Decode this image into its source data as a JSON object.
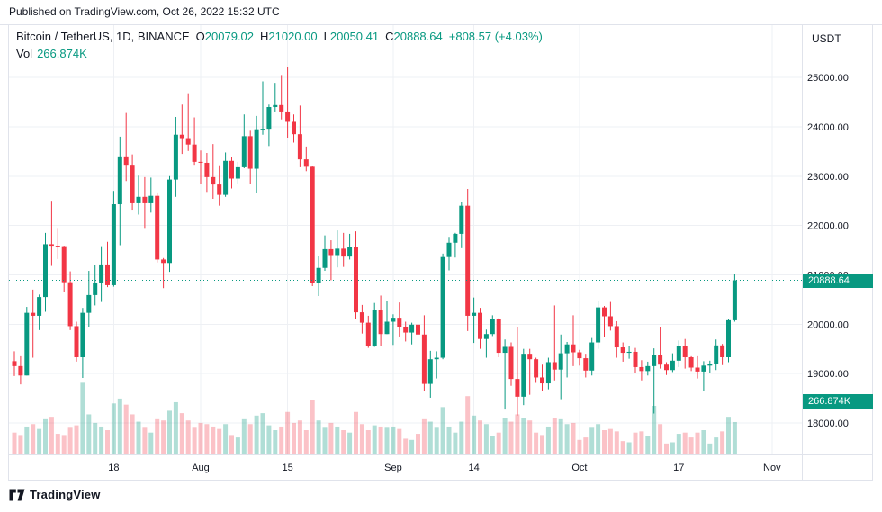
{
  "published_bar": {
    "text": "Published on TradingView.com, Oct 26, 2022 15:32 UTC"
  },
  "footer": {
    "brand": "TradingView"
  },
  "colors": {
    "up": "#089981",
    "down": "#F23645",
    "up_volume": "rgba(8,153,129,0.32)",
    "down_volume": "rgba(242,54,69,0.30)",
    "grid": "#eef0f4",
    "separator": "#e0e3eb",
    "axis_text": "#131722",
    "badge_bg": "#089981",
    "badge_text": "#ffffff"
  },
  "legend": {
    "symbol": "Bitcoin / TetherUS, 1D, BINANCE",
    "ohlc": [
      {
        "label": "O",
        "value": "20079.02"
      },
      {
        "label": "H",
        "value": "21020.00"
      },
      {
        "label": "L",
        "value": "20050.41"
      },
      {
        "label": "C",
        "value": "20888.64"
      }
    ],
    "change": "+808.57 (+4.03%)",
    "vol_label": "Vol",
    "vol_value": "266.874K"
  },
  "axes": {
    "currency": "USDT",
    "price_ticks": [
      "25000.00",
      "24000.00",
      "23000.00",
      "22000.00",
      "21000.00",
      "20000.00",
      "19000.00",
      "18000.00"
    ],
    "price_tick_values": [
      25000,
      24000,
      23000,
      22000,
      21000,
      20000,
      19000,
      18000
    ],
    "time_ticks": [
      {
        "label": "18",
        "i": 16
      },
      {
        "label": "Aug",
        "i": 30
      },
      {
        "label": "15",
        "i": 44
      },
      {
        "label": "Sep",
        "i": 61
      },
      {
        "label": "14",
        "i": 74
      },
      {
        "label": "Oct",
        "i": 91
      },
      {
        "label": "17",
        "i": 107
      },
      {
        "label": "Nov",
        "i": 122
      }
    ]
  },
  "badges": {
    "price": "20888.64",
    "volume": "266.874K"
  },
  "chart_data": {
    "type": "candlestick",
    "title": "Bitcoin / TetherUS, 1D, BINANCE",
    "currency": "USDT",
    "last_close": 20888.64,
    "change": "+808.57 (+4.03%)",
    "last_volume": "266.874K",
    "price_range": [
      17360,
      26060
    ],
    "columns": [
      "date",
      "open",
      "high",
      "low",
      "close",
      "volume_k"
    ],
    "candles": [
      [
        "Jul 2",
        19250,
        19450,
        18950,
        19150,
        180
      ],
      [
        "Jul 3",
        19150,
        19350,
        18780,
        18960,
        160
      ],
      [
        "Jul 4",
        18960,
        20350,
        18960,
        20230,
        230
      ],
      [
        "Jul 5",
        20230,
        20700,
        19320,
        20170,
        250
      ],
      [
        "Jul 6",
        20170,
        20600,
        19880,
        20550,
        210
      ],
      [
        "Jul 7",
        20550,
        21850,
        20250,
        21620,
        290
      ],
      [
        "Jul 8",
        21620,
        22500,
        21180,
        21590,
        310
      ],
      [
        "Jul 9",
        21590,
        21950,
        21320,
        21580,
        170
      ],
      [
        "Jul 10",
        21580,
        21590,
        20650,
        20850,
        160
      ],
      [
        "Jul 11",
        20850,
        21070,
        19880,
        19960,
        220
      ],
      [
        "Jul 12",
        19960,
        20050,
        19240,
        19330,
        240
      ],
      [
        "Jul 13",
        19330,
        20330,
        18910,
        20230,
        590
      ],
      [
        "Jul 14",
        20230,
        21080,
        19950,
        20590,
        330
      ],
      [
        "Jul 15",
        20590,
        21200,
        20380,
        20830,
        260
      ],
      [
        "Jul 16",
        20830,
        21580,
        20450,
        21210,
        230
      ],
      [
        "Jul 17",
        21210,
        21670,
        20750,
        20790,
        200
      ],
      [
        "Jul 18",
        20790,
        22700,
        20760,
        22430,
        420
      ],
      [
        "Jul 19",
        22430,
        23800,
        21600,
        23400,
        460
      ],
      [
        "Jul 20",
        23400,
        24280,
        22900,
        23230,
        410
      ],
      [
        "Jul 21",
        23230,
        23440,
        22320,
        22450,
        330
      ],
      [
        "Jul 22",
        22450,
        23010,
        22220,
        22580,
        270
      ],
      [
        "Jul 23",
        22580,
        22980,
        21950,
        22450,
        220
      ],
      [
        "Jul 24",
        22450,
        22970,
        22260,
        22600,
        180
      ],
      [
        "Jul 25",
        22600,
        22670,
        21250,
        21310,
        290
      ],
      [
        "Jul 26",
        21310,
        21340,
        20730,
        21240,
        280
      ],
      [
        "Jul 27",
        21240,
        23000,
        21060,
        22930,
        360
      ],
      [
        "Jul 28",
        22930,
        24200,
        22580,
        23840,
        430
      ],
      [
        "Jul 29",
        23840,
        24450,
        23450,
        23770,
        340
      ],
      [
        "Jul 30",
        23770,
        24680,
        23510,
        23640,
        280
      ],
      [
        "Jul 31",
        23640,
        24190,
        23230,
        23290,
        220
      ],
      [
        "Aug 1",
        23290,
        23520,
        22840,
        23270,
        260
      ],
      [
        "Aug 2",
        23270,
        23470,
        22680,
        22980,
        250
      ],
      [
        "Aug 3",
        22980,
        23650,
        22540,
        22830,
        230
      ],
      [
        "Aug 4",
        22830,
        23220,
        22400,
        22620,
        210
      ],
      [
        "Aug 5",
        22620,
        23480,
        22580,
        23310,
        250
      ],
      [
        "Aug 6",
        23310,
        23390,
        22750,
        22950,
        160
      ],
      [
        "Aug 7",
        22950,
        23290,
        22850,
        23180,
        140
      ],
      [
        "Aug 8",
        23180,
        24250,
        23160,
        23810,
        290
      ],
      [
        "Aug 9",
        23810,
        23920,
        22850,
        23150,
        250
      ],
      [
        "Aug 10",
        23150,
        24220,
        22660,
        23950,
        320
      ],
      [
        "Aug 11",
        23950,
        24920,
        23840,
        23960,
        340
      ],
      [
        "Aug 12",
        23960,
        24450,
        23610,
        24400,
        240
      ],
      [
        "Aug 13",
        24400,
        24890,
        24310,
        24440,
        200
      ],
      [
        "Aug 14",
        24440,
        25050,
        24150,
        24310,
        230
      ],
      [
        "Aug 15",
        24310,
        25210,
        23780,
        24100,
        350
      ],
      [
        "Aug 16",
        24100,
        24250,
        23680,
        23850,
        260
      ],
      [
        "Aug 17",
        23850,
        24430,
        23180,
        23340,
        280
      ],
      [
        "Aug 18",
        23340,
        23600,
        23100,
        23190,
        200
      ],
      [
        "Aug 19",
        23190,
        23210,
        20770,
        20830,
        450
      ],
      [
        "Aug 20",
        20830,
        21380,
        20570,
        21140,
        280
      ],
      [
        "Aug 21",
        21140,
        21800,
        21080,
        21520,
        220
      ],
      [
        "Aug 22",
        21520,
        21700,
        20890,
        21400,
        260
      ],
      [
        "Aug 23",
        21400,
        21900,
        21150,
        21530,
        230
      ],
      [
        "Aug 24",
        21530,
        21850,
        21160,
        21370,
        200
      ],
      [
        "Aug 25",
        21370,
        21830,
        21310,
        21560,
        180
      ],
      [
        "Aug 26",
        21560,
        21880,
        20110,
        20240,
        350
      ],
      [
        "Aug 27",
        20240,
        20390,
        19810,
        20030,
        250
      ],
      [
        "Aug 28",
        20030,
        20170,
        19520,
        19550,
        200
      ],
      [
        "Aug 29",
        19550,
        20430,
        19540,
        20290,
        240
      ],
      [
        "Aug 30",
        20290,
        20580,
        19560,
        19800,
        230
      ],
      [
        "Aug 31",
        19800,
        20480,
        19800,
        20050,
        220
      ],
      [
        "Sep 1",
        20050,
        20200,
        19580,
        20130,
        230
      ],
      [
        "Sep 2",
        20130,
        20440,
        19750,
        19950,
        210
      ],
      [
        "Sep 3",
        19950,
        20050,
        19650,
        19830,
        130
      ],
      [
        "Sep 4",
        19830,
        20030,
        19590,
        19990,
        120
      ],
      [
        "Sep 5",
        19990,
        20060,
        19640,
        19790,
        170
      ],
      [
        "Sep 6",
        19790,
        20180,
        18650,
        18790,
        290
      ],
      [
        "Sep 7",
        18790,
        19460,
        18510,
        19290,
        270
      ],
      [
        "Sep 8",
        19290,
        19450,
        18900,
        19320,
        220
      ],
      [
        "Sep 9",
        19320,
        21430,
        19290,
        21360,
        390
      ],
      [
        "Sep 10",
        21360,
        21770,
        21090,
        21650,
        230
      ],
      [
        "Sep 11",
        21650,
        21850,
        21350,
        21830,
        180
      ],
      [
        "Sep 12",
        21830,
        22480,
        21540,
        22400,
        270
      ],
      [
        "Sep 13",
        22400,
        22740,
        19860,
        20170,
        480
      ],
      [
        "Sep 14",
        20170,
        20540,
        19620,
        20230,
        320
      ],
      [
        "Sep 15",
        20230,
        20330,
        19500,
        19700,
        280
      ],
      [
        "Sep 16",
        19700,
        19890,
        19320,
        19800,
        250
      ],
      [
        "Sep 17",
        19800,
        20180,
        19760,
        20110,
        150
      ],
      [
        "Sep 18",
        20110,
        20120,
        19330,
        19420,
        180
      ],
      [
        "Sep 19",
        19420,
        19690,
        18270,
        19540,
        300
      ],
      [
        "Sep 20",
        19540,
        19630,
        18750,
        18890,
        270
      ],
      [
        "Sep 21",
        18890,
        19950,
        18150,
        18530,
        330
      ],
      [
        "Sep 22",
        18530,
        19500,
        18360,
        19400,
        300
      ],
      [
        "Sep 23",
        19400,
        19500,
        18570,
        19290,
        280
      ],
      [
        "Sep 24",
        19290,
        19320,
        18810,
        18920,
        180
      ],
      [
        "Sep 25",
        18920,
        19180,
        18640,
        18800,
        160
      ],
      [
        "Sep 26",
        18800,
        19320,
        18680,
        19230,
        230
      ],
      [
        "Sep 27",
        19230,
        20380,
        18860,
        19080,
        300
      ],
      [
        "Sep 28",
        19080,
        19790,
        18480,
        19410,
        290
      ],
      [
        "Sep 29",
        19410,
        19640,
        18920,
        19590,
        250
      ],
      [
        "Sep 30",
        19590,
        20180,
        19150,
        19430,
        260
      ],
      [
        "Oct 1",
        19430,
        19480,
        19160,
        19310,
        120
      ],
      [
        "Oct 2",
        19310,
        19400,
        18920,
        19060,
        140
      ],
      [
        "Oct 3",
        19060,
        19720,
        18960,
        19630,
        220
      ],
      [
        "Oct 4",
        19630,
        20480,
        19500,
        20340,
        250
      ],
      [
        "Oct 5",
        20340,
        20370,
        19750,
        20160,
        200
      ],
      [
        "Oct 6",
        20160,
        20450,
        19870,
        19960,
        210
      ],
      [
        "Oct 7",
        19960,
        20060,
        19320,
        19530,
        190
      ],
      [
        "Oct 8",
        19530,
        19630,
        19240,
        19420,
        110
      ],
      [
        "Oct 9",
        19420,
        19560,
        19300,
        19440,
        100
      ],
      [
        "Oct 10",
        19440,
        19520,
        19020,
        19130,
        180
      ],
      [
        "Oct 11",
        19130,
        19270,
        18860,
        19050,
        190
      ],
      [
        "Oct 12",
        19050,
        19240,
        18960,
        19150,
        150
      ],
      [
        "Oct 13",
        19150,
        19510,
        18190,
        19380,
        400
      ],
      [
        "Oct 14",
        19380,
        19950,
        19100,
        19180,
        250
      ],
      [
        "Oct 15",
        19180,
        19230,
        18970,
        19070,
        90
      ],
      [
        "Oct 16",
        19070,
        19410,
        19030,
        19260,
        100
      ],
      [
        "Oct 17",
        19260,
        19670,
        19130,
        19550,
        170
      ],
      [
        "Oct 18",
        19550,
        19700,
        19100,
        19330,
        180
      ],
      [
        "Oct 19",
        19330,
        19350,
        19050,
        19120,
        140
      ],
      [
        "Oct 20",
        19120,
        19350,
        18900,
        19040,
        180
      ],
      [
        "Oct 21",
        19040,
        19250,
        18650,
        19160,
        200
      ],
      [
        "Oct 22",
        19160,
        19260,
        19020,
        19200,
        90
      ],
      [
        "Oct 23",
        19200,
        19690,
        19070,
        19570,
        140
      ],
      [
        "Oct 24",
        19570,
        19600,
        19170,
        19330,
        190
      ],
      [
        "Oct 25",
        19330,
        20100,
        19230,
        20080,
        310
      ],
      [
        "Oct 26",
        20079.02,
        21020.0,
        20050.41,
        20888.64,
        266.874
      ]
    ]
  }
}
